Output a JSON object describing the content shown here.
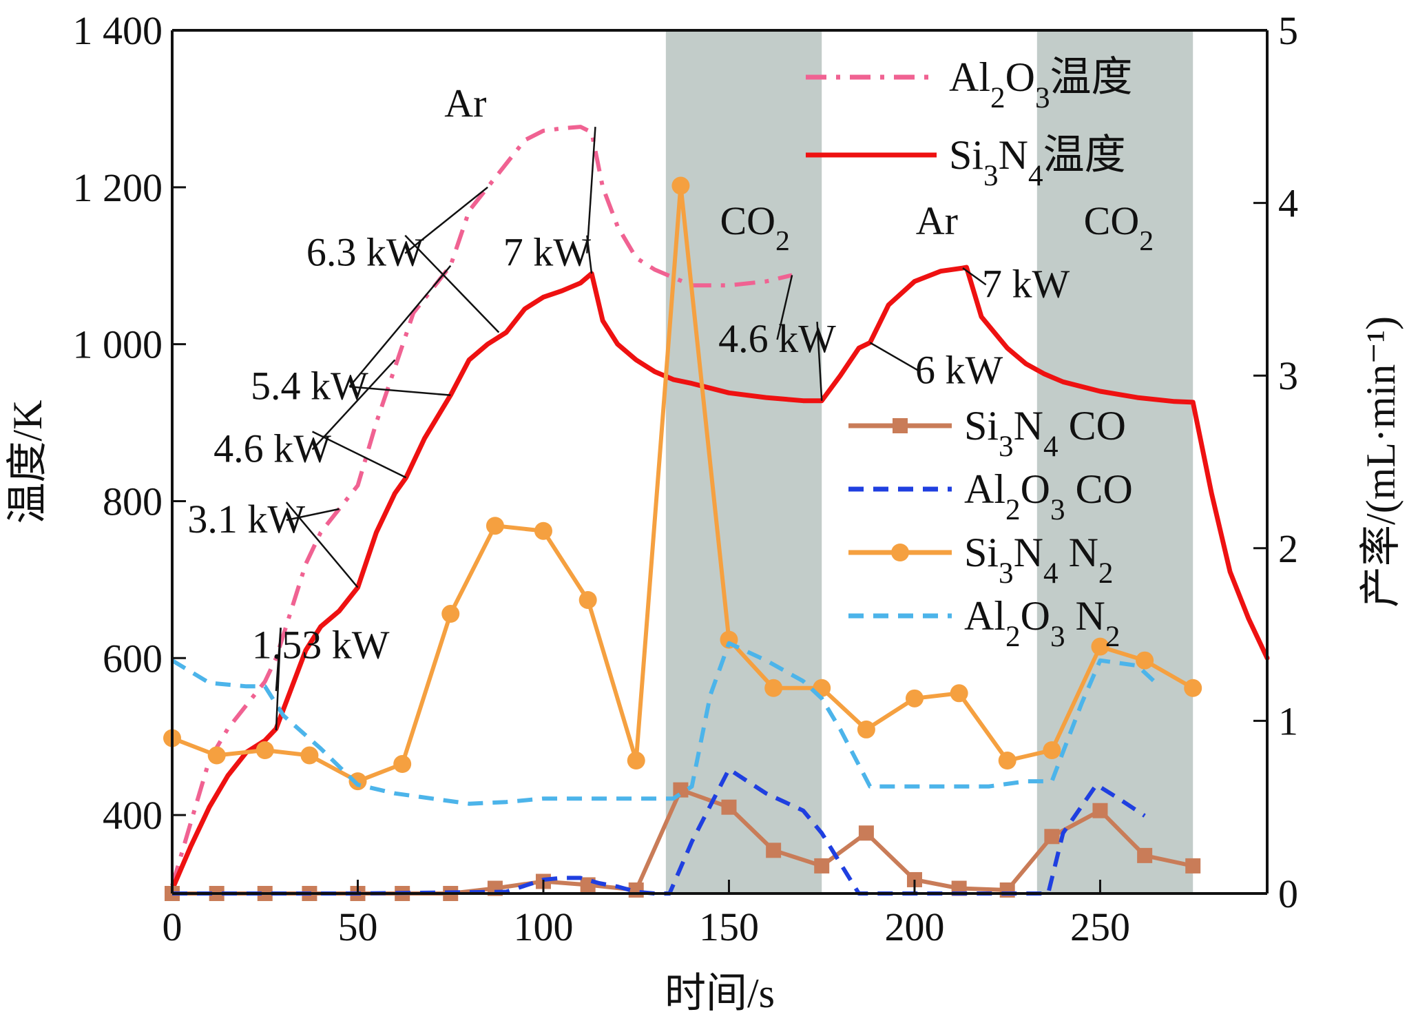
{
  "chart_data": {
    "type": "line",
    "xlabel": "时间/s",
    "ylabel_left": "温度/K",
    "ylabel_right": "产率/(mL·min⁻¹)",
    "xlim": [
      0,
      295
    ],
    "ylim_left": [
      300,
      1400
    ],
    "ylim_right": [
      0,
      5
    ],
    "x_ticks": [
      0,
      50,
      100,
      150,
      200,
      250
    ],
    "x_tick_labels": [
      "0",
      "50",
      "100",
      "150",
      "200",
      "250"
    ],
    "y_left_ticks": [
      400,
      600,
      800,
      1000,
      1200,
      1400
    ],
    "y_left_tick_labels": [
      "400",
      "600",
      "800",
      "1 000",
      "1 200",
      "1 400"
    ],
    "y_right_ticks": [
      0,
      1,
      2,
      3,
      4,
      5
    ],
    "y_right_tick_labels": [
      "0",
      "1",
      "2",
      "3",
      "4",
      "5"
    ],
    "grid": false,
    "atmosphere_bands": [
      {
        "label": "CO₂",
        "x_start": 133,
        "x_end": 175,
        "color": "#c2ccc9"
      },
      {
        "label": "CO₂",
        "x_start": 233,
        "x_end": 275,
        "color": "#c2ccc9"
      }
    ],
    "atmosphere_labels": [
      {
        "text": "Ar",
        "x": 79,
        "y": 1290
      },
      {
        "text": "CO₂",
        "x": 157,
        "y": 1140
      },
      {
        "text": "Ar",
        "x": 206,
        "y": 1140
      },
      {
        "text": "CO₂",
        "x": 255,
        "y": 1140
      }
    ],
    "series": [
      {
        "name": "Al₂O₃温度",
        "axis": "left",
        "color": "#f06292",
        "dash": "dashdot",
        "marker": "none",
        "x": [
          0,
          5,
          10,
          15,
          20,
          25,
          28,
          32,
          36,
          40,
          45,
          50,
          55,
          60,
          65,
          70,
          75,
          80,
          85,
          90,
          95,
          100,
          105,
          110,
          113,
          116,
          120,
          125,
          130,
          135,
          140,
          150,
          160,
          167
        ],
        "y": [
          310,
          390,
          470,
          510,
          540,
          570,
          600,
          660,
          720,
          760,
          790,
          820,
          900,
          970,
          1040,
          1070,
          1100,
          1170,
          1200,
          1230,
          1260,
          1272,
          1275,
          1277,
          1270,
          1200,
          1150,
          1110,
          1095,
          1085,
          1075,
          1075,
          1080,
          1088
        ]
      },
      {
        "name": "Si₃N₄温度",
        "axis": "left",
        "color": "#ee1111",
        "dash": "solid",
        "marker": "none",
        "x": [
          0,
          5,
          10,
          15,
          20,
          25,
          28,
          32,
          36,
          40,
          45,
          50,
          55,
          60,
          63,
          68,
          75,
          80,
          85,
          90,
          95,
          100,
          105,
          110,
          113,
          116,
          120,
          125,
          130,
          135,
          140,
          150,
          160,
          170,
          175,
          180,
          185,
          188,
          193,
          200,
          207,
          213,
          214,
          218,
          225,
          230,
          235,
          240,
          250,
          260,
          270,
          275,
          280,
          285,
          290,
          295
        ],
        "y": [
          305,
          360,
          410,
          450,
          480,
          495,
          510,
          560,
          610,
          640,
          660,
          690,
          760,
          810,
          830,
          880,
          935,
          980,
          1000,
          1015,
          1045,
          1060,
          1068,
          1078,
          1090,
          1030,
          1000,
          980,
          965,
          955,
          950,
          938,
          932,
          928,
          928,
          960,
          995,
          1002,
          1050,
          1080,
          1093,
          1097,
          1098,
          1035,
          995,
          975,
          962,
          952,
          940,
          932,
          927,
          926,
          810,
          710,
          650,
          600
        ]
      },
      {
        "name": "Si₃N₄ CO",
        "axis": "right",
        "color": "#c97c58",
        "dash": "solid",
        "marker": "square",
        "x": [
          0,
          12,
          25,
          37,
          50,
          62,
          75,
          87,
          100,
          112,
          125,
          137,
          150,
          162,
          175,
          187,
          200,
          212,
          225,
          237,
          250,
          262,
          275
        ],
        "y": [
          0,
          0,
          0,
          0,
          0,
          0,
          0,
          0.03,
          0.07,
          0.05,
          0.02,
          0.6,
          0.5,
          0.25,
          0.16,
          0.35,
          0.08,
          0.03,
          0.02,
          0.33,
          0.48,
          0.22,
          0.16
        ]
      },
      {
        "name": "Al₂O₃ CO",
        "axis": "right",
        "color": "#1f3fe0",
        "dash": "dash",
        "marker": "none",
        "x": [
          0,
          50,
          90,
          100,
          105,
          110,
          115,
          120,
          125,
          130,
          134,
          140,
          150,
          160,
          170,
          175,
          185,
          190,
          230,
          236,
          240,
          249,
          255,
          262
        ],
        "y": [
          0,
          0,
          0.01,
          0.08,
          0.09,
          0.09,
          0.06,
          0.04,
          0.01,
          0,
          0,
          0.3,
          0.72,
          0.58,
          0.48,
          0.35,
          0,
          0,
          0,
          0,
          0.35,
          0.63,
          0.55,
          0.45
        ]
      },
      {
        "name": "Si₃N₄ N₂",
        "axis": "right",
        "color": "#f5a040",
        "dash": "solid",
        "marker": "circle",
        "x": [
          0,
          12,
          25,
          37,
          50,
          62,
          75,
          87,
          100,
          112,
          125,
          137,
          150,
          162,
          175,
          187,
          200,
          212,
          225,
          237,
          250,
          262,
          275
        ],
        "y": [
          0.9,
          0.8,
          0.83,
          0.8,
          0.65,
          0.75,
          1.62,
          2.13,
          2.1,
          1.7,
          0.77,
          4.1,
          1.47,
          1.19,
          1.19,
          0.95,
          1.13,
          1.16,
          0.77,
          0.83,
          1.43,
          1.35,
          1.19
        ]
      },
      {
        "name": "Al₂O₃ N₂",
        "axis": "right",
        "color": "#4cb4ea",
        "dash": "dash",
        "marker": "none",
        "x": [
          0,
          10,
          20,
          25,
          30,
          40,
          50,
          60,
          70,
          80,
          90,
          100,
          110,
          120,
          130,
          135,
          140,
          145,
          150,
          160,
          170,
          175,
          180,
          188,
          200,
          210,
          220,
          230,
          237,
          240,
          245,
          250,
          260,
          265
        ],
        "y": [
          1.35,
          1.22,
          1.2,
          1.2,
          1.03,
          0.84,
          0.63,
          0.58,
          0.55,
          0.52,
          0.53,
          0.55,
          0.55,
          0.55,
          0.55,
          0.55,
          0.62,
          1.15,
          1.45,
          1.35,
          1.23,
          1.13,
          0.95,
          0.62,
          0.62,
          0.62,
          0.62,
          0.65,
          0.65,
          0.82,
          1.1,
          1.35,
          1.32,
          1.22
        ]
      }
    ],
    "annotations": [
      {
        "text": "1.53 kW",
        "pos": [
          40,
          600
        ],
        "targets": [
          [
            28,
            558
          ],
          [
            28,
            508
          ]
        ]
      },
      {
        "text": "3.1 kW",
        "pos": [
          20,
          760
        ],
        "targets": [
          [
            45,
            790
          ],
          [
            50,
            690
          ]
        ]
      },
      {
        "text": "4.6 kW",
        "pos": [
          27,
          850
        ],
        "targets": [
          [
            60,
            980
          ],
          [
            63,
            830
          ]
        ]
      },
      {
        "text": "5.4 kW",
        "pos": [
          37,
          930
        ],
        "targets": [
          [
            75,
            1100
          ],
          [
            75,
            935
          ]
        ]
      },
      {
        "text": "6.3 kW",
        "pos": [
          52,
          1100
        ],
        "targets": [
          [
            85,
            1200
          ],
          [
            88,
            1015
          ]
        ]
      },
      {
        "text": "7 kW",
        "pos": [
          101,
          1100
        ],
        "targets": [
          [
            114,
            1277
          ],
          [
            113,
            1090
          ]
        ]
      },
      {
        "text": "4.6 kW",
        "pos": [
          163,
          990
        ],
        "targets": [
          [
            167,
            1088
          ],
          [
            175,
            928
          ]
        ]
      },
      {
        "text": "6 kW",
        "pos": [
          212,
          950
        ],
        "targets": [
          [
            188,
            1002
          ]
        ]
      },
      {
        "text": "7 kW",
        "pos": [
          230,
          1060
        ],
        "targets": [
          [
            213,
            1097
          ]
        ]
      }
    ],
    "legend": [
      {
        "series": "Al₂O₃温度",
        "main": "Al",
        "sub1": "2",
        "mid": "O",
        "sub2": "3",
        "tail": "温度"
      },
      {
        "series": "Si₃N₄温度",
        "main": "Si",
        "sub1": "3",
        "mid": "N",
        "sub2": "4",
        "tail": "温度"
      },
      {
        "series": "Si₃N₄ CO",
        "main": "Si",
        "sub1": "3",
        "mid": "N",
        "sub2": "4",
        "tail": " CO"
      },
      {
        "series": "Al₂O₃ CO",
        "main": "Al",
        "sub1": "2",
        "mid": "O",
        "sub2": "3",
        "tail": " CO"
      },
      {
        "series": "Si₃N₄ N₂",
        "main": "Si",
        "sub1": "3",
        "mid": "N",
        "sub2": "4",
        "tail": " N",
        "sub3": "2"
      },
      {
        "series": "Al₂O₃ N₂",
        "main": "Al",
        "sub1": "2",
        "mid": "O",
        "sub2": "3",
        "tail": " N",
        "sub3": "2"
      }
    ]
  }
}
